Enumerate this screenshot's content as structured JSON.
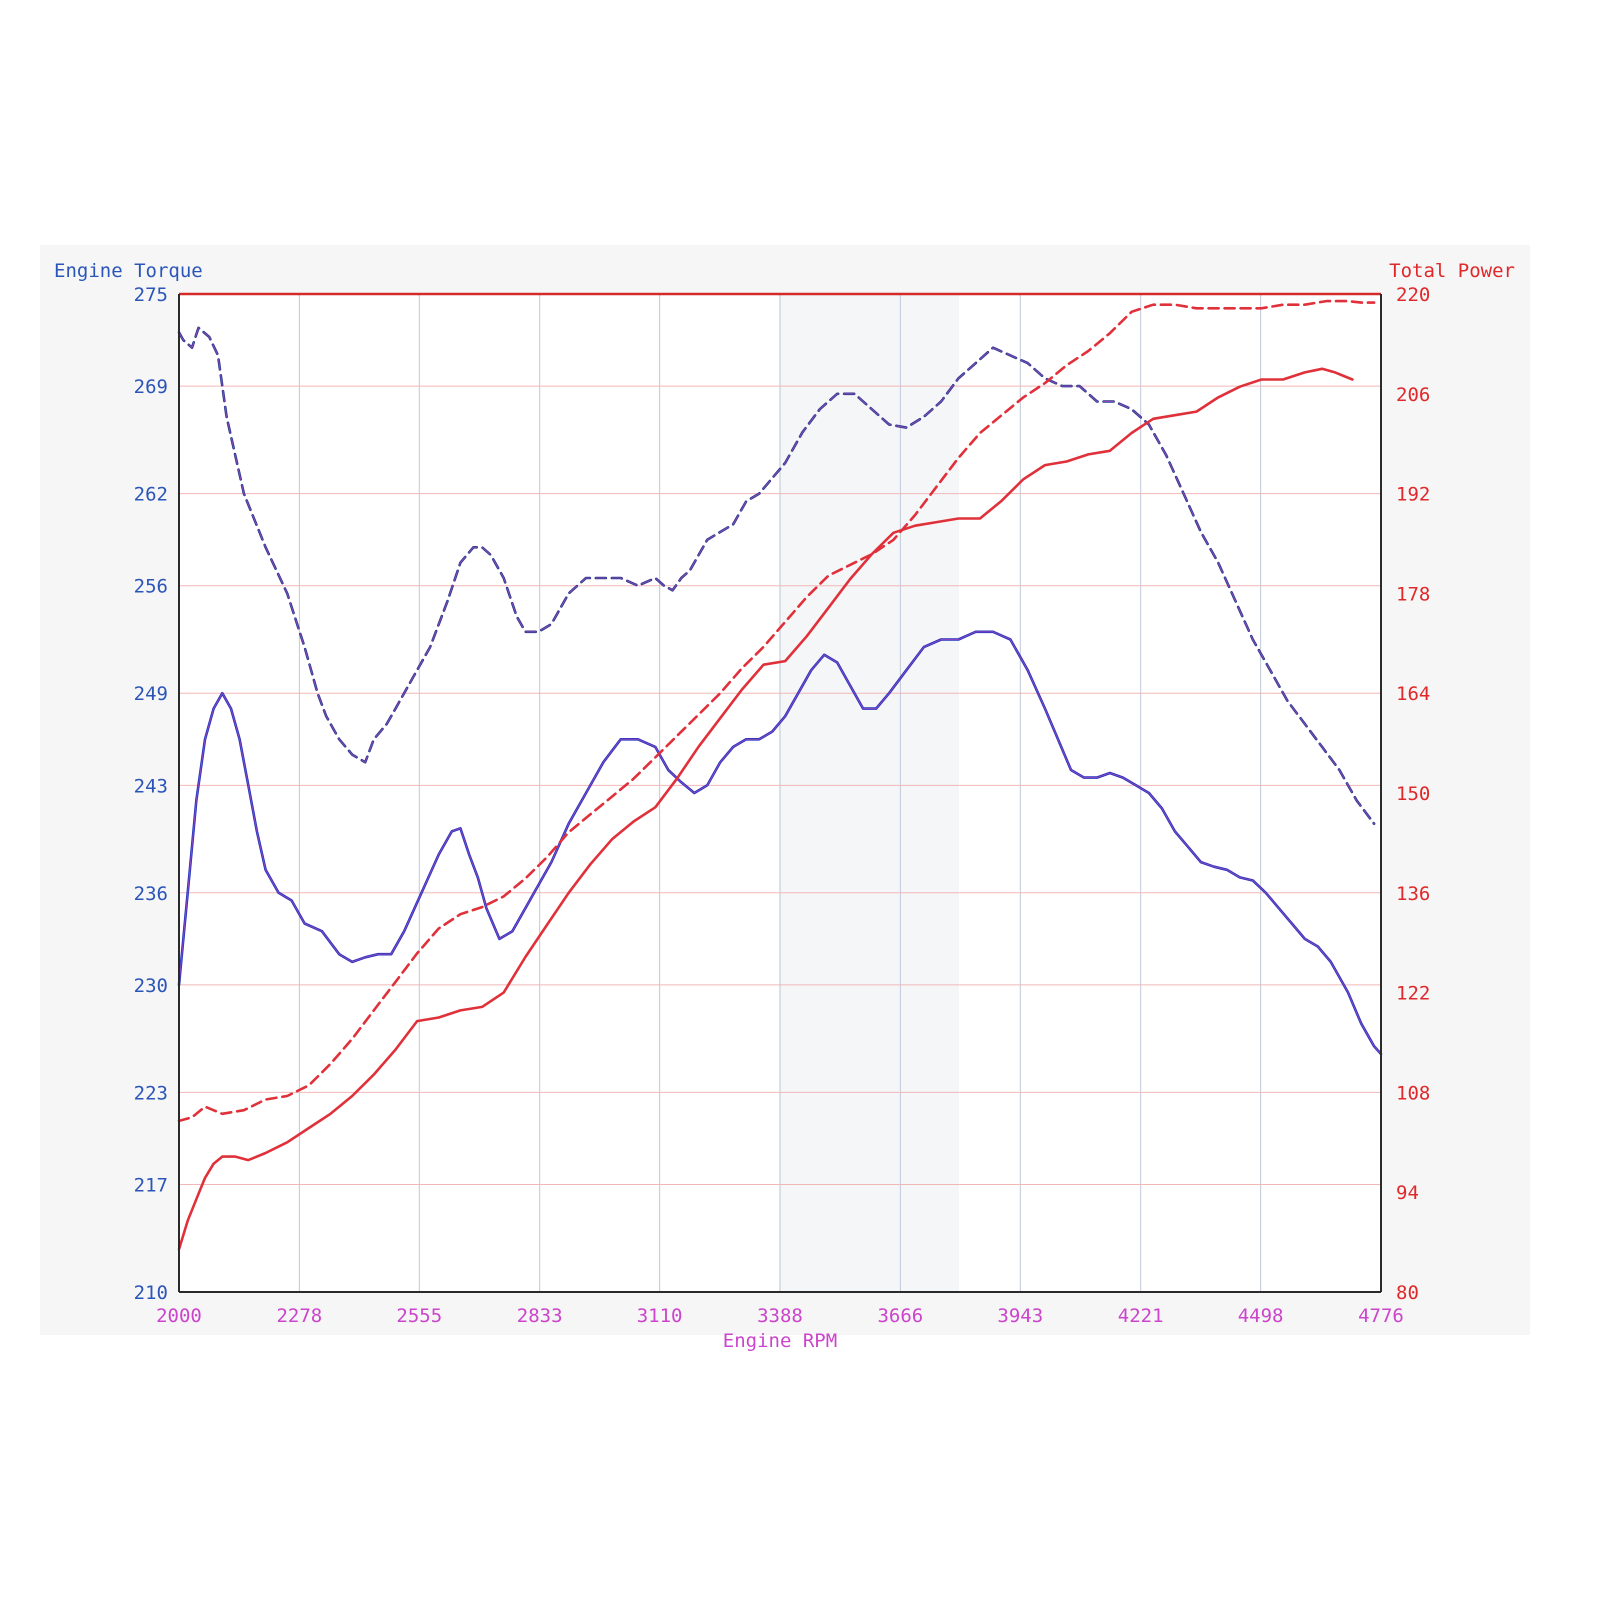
{
  "chart_data": {
    "type": "line",
    "left_axis_label": "Engine Torque",
    "right_axis_label": "Total Power",
    "xlabel": "Engine RPM",
    "x_ticks": [
      2000,
      2278,
      2555,
      2833,
      3110,
      3388,
      3666,
      3943,
      4221,
      4498,
      4776
    ],
    "left_ticks": [
      210,
      217,
      223,
      230,
      236,
      243,
      249,
      256,
      262,
      269,
      275
    ],
    "right_ticks": [
      80,
      94,
      108,
      122,
      136,
      150,
      164,
      178,
      192,
      206,
      220
    ],
    "xlim": [
      2000,
      4776
    ],
    "left_ylim": [
      210,
      275
    ],
    "right_ylim": [
      80,
      220
    ],
    "grid": true,
    "colors": {
      "left_axis": "#2b55b8",
      "right_axis": "#e0282a",
      "x_axis": "#cc44cc",
      "torque_solid": "#2233bb",
      "torque_dashed": "#283a8c",
      "power": "#e0303a",
      "grid_pink": "#f2b8b8",
      "grid_blue": "#c0c8d8"
    },
    "series": [
      {
        "axis": "left",
        "style": "dashed",
        "x": [
          2000,
          2010,
          2030,
          2045,
          2070,
          2090,
          2110,
          2150,
          2200,
          2250,
          2290,
          2320,
          2340,
          2370,
          2400,
          2430,
          2450,
          2480,
          2500,
          2540,
          2580,
          2620,
          2650,
          2680,
          2700,
          2720,
          2750,
          2780,
          2800,
          2830,
          2860,
          2900,
          2940,
          2980,
          3020,
          3060,
          3100,
          3120,
          3140,
          3160,
          3180,
          3220,
          3250,
          3280,
          3310,
          3340,
          3370,
          3400,
          3440,
          3480,
          3520,
          3560,
          3600,
          3640,
          3680,
          3720,
          3760,
          3800,
          3840,
          3880,
          3920,
          3960,
          4000,
          4040,
          4080,
          4120,
          4160,
          4200,
          4240,
          4280,
          4320,
          4360,
          4400,
          4440,
          4480,
          4520,
          4560,
          4600,
          4640,
          4680,
          4720,
          4760
        ],
        "values": [
          272.5,
          272.0,
          271.5,
          272.8,
          272.2,
          271.0,
          267.0,
          262.0,
          258.5,
          255.5,
          252.0,
          249.0,
          247.5,
          246.0,
          245.0,
          244.5,
          246.0,
          247.0,
          248.0,
          250.0,
          252.0,
          255.0,
          257.5,
          258.5,
          258.5,
          258.0,
          256.5,
          254.0,
          253.0,
          253.0,
          253.5,
          255.5,
          256.5,
          256.5,
          256.5,
          256.0,
          256.5,
          256.0,
          255.7,
          256.5,
          257.0,
          259.0,
          259.5,
          260.0,
          261.5,
          262.0,
          263.0,
          264.0,
          266.0,
          267.5,
          268.5,
          268.5,
          267.5,
          266.5,
          266.3,
          267.0,
          268.0,
          269.5,
          270.5,
          271.5,
          271.0,
          270.5,
          269.5,
          269.0,
          269.0,
          268.0,
          268.0,
          267.5,
          266.5,
          264.5,
          262.0,
          259.5,
          257.5,
          255.0,
          252.5,
          250.5,
          248.5,
          247.0,
          245.5,
          244.0,
          242.0,
          240.5
        ]
      },
      {
        "axis": "left",
        "style": "solid",
        "x": [
          2000,
          2020,
          2040,
          2060,
          2080,
          2100,
          2120,
          2140,
          2160,
          2180,
          2200,
          2230,
          2260,
          2290,
          2330,
          2370,
          2400,
          2430,
          2460,
          2490,
          2520,
          2560,
          2600,
          2630,
          2650,
          2670,
          2690,
          2710,
          2740,
          2770,
          2800,
          2830,
          2860,
          2900,
          2940,
          2980,
          3020,
          3060,
          3100,
          3130,
          3160,
          3190,
          3220,
          3250,
          3280,
          3310,
          3340,
          3370,
          3400,
          3430,
          3460,
          3490,
          3520,
          3550,
          3580,
          3610,
          3640,
          3680,
          3720,
          3760,
          3800,
          3840,
          3880,
          3920,
          3960,
          4000,
          4030,
          4060,
          4090,
          4120,
          4150,
          4180,
          4210,
          4240,
          4270,
          4300,
          4330,
          4360,
          4390,
          4420,
          4450,
          4480,
          4510,
          4540,
          4570,
          4600,
          4630,
          4660,
          4700,
          4730,
          4760,
          4776
        ],
        "values": [
          230.0,
          236.0,
          242.0,
          246.0,
          248.0,
          249.0,
          248.0,
          246.0,
          243.0,
          240.0,
          237.5,
          236.0,
          235.5,
          234.0,
          233.5,
          232.0,
          231.5,
          231.8,
          232.0,
          232.0,
          233.5,
          236.0,
          238.5,
          240.0,
          240.2,
          238.5,
          237.0,
          235.0,
          233.0,
          233.5,
          235.0,
          236.5,
          238.0,
          240.5,
          242.5,
          244.5,
          246.0,
          246.0,
          245.5,
          244.0,
          243.2,
          242.5,
          243.0,
          244.5,
          245.5,
          246.0,
          246.0,
          246.5,
          247.5,
          249.0,
          250.5,
          251.5,
          251.0,
          249.5,
          248.0,
          248.0,
          249.0,
          250.5,
          252.0,
          252.5,
          252.5,
          253.0,
          253.0,
          252.5,
          250.5,
          248.0,
          246.0,
          244.0,
          243.5,
          243.5,
          243.8,
          243.5,
          243.0,
          242.5,
          241.5,
          240.0,
          239.0,
          238.0,
          237.7,
          237.5,
          237.0,
          236.8,
          236.0,
          235.0,
          234.0,
          233.0,
          232.5,
          231.5,
          229.5,
          227.5,
          226.0,
          225.5
        ]
      },
      {
        "axis": "right",
        "style": "dashed",
        "x": [
          2000,
          2030,
          2060,
          2100,
          2150,
          2200,
          2250,
          2300,
          2350,
          2400,
          2450,
          2500,
          2550,
          2600,
          2650,
          2700,
          2750,
          2800,
          2850,
          2900,
          2950,
          3000,
          3050,
          3100,
          3150,
          3200,
          3250,
          3300,
          3350,
          3400,
          3450,
          3500,
          3550,
          3600,
          3650,
          3700,
          3750,
          3800,
          3850,
          3900,
          3950,
          4000,
          4050,
          4100,
          4150,
          4200,
          4250,
          4300,
          4350,
          4400,
          4450,
          4500,
          4550,
          4600,
          4650,
          4700,
          4730,
          4760
        ],
        "values": [
          104.0,
          104.5,
          106.0,
          105.0,
          105.5,
          107.0,
          107.5,
          109.0,
          112.0,
          115.5,
          119.5,
          123.5,
          127.5,
          131.0,
          133.0,
          134.0,
          135.5,
          138.0,
          141.0,
          144.5,
          147.0,
          149.5,
          152.0,
          155.0,
          158.0,
          161.0,
          164.0,
          167.5,
          170.5,
          174.0,
          177.5,
          180.5,
          182.0,
          183.5,
          185.5,
          189.0,
          193.0,
          197.0,
          200.5,
          203.0,
          205.5,
          207.5,
          210.0,
          212.0,
          214.5,
          217.5,
          218.5,
          218.5,
          218.0,
          218.0,
          218.0,
          218.0,
          218.5,
          218.5,
          219.0,
          219.0,
          218.8,
          218.8
        ]
      },
      {
        "axis": "right",
        "style": "solid",
        "x": [
          2000,
          2020,
          2040,
          2060,
          2080,
          2100,
          2130,
          2160,
          2200,
          2250,
          2300,
          2350,
          2400,
          2450,
          2500,
          2550,
          2600,
          2650,
          2700,
          2750,
          2800,
          2850,
          2900,
          2950,
          3000,
          3050,
          3100,
          3150,
          3200,
          3250,
          3300,
          3350,
          3400,
          3450,
          3500,
          3550,
          3600,
          3650,
          3700,
          3750,
          3800,
          3850,
          3900,
          3950,
          4000,
          4050,
          4100,
          4150,
          4200,
          4250,
          4300,
          4350,
          4400,
          4450,
          4500,
          4550,
          4600,
          4640,
          4670,
          4690,
          4710
        ],
        "values": [
          86.0,
          90.0,
          93.0,
          96.0,
          98.0,
          99.0,
          99.0,
          98.5,
          99.5,
          101.0,
          103.0,
          105.0,
          107.5,
          110.5,
          114.0,
          118.0,
          118.5,
          119.5,
          120.0,
          122.0,
          127.0,
          131.5,
          136.0,
          140.0,
          143.5,
          146.0,
          148.0,
          152.0,
          156.5,
          160.5,
          164.5,
          168.0,
          168.5,
          172.0,
          176.0,
          180.0,
          183.5,
          186.5,
          187.5,
          188.0,
          188.5,
          188.5,
          191.0,
          194.0,
          196.0,
          196.5,
          197.5,
          198.0,
          200.5,
          202.5,
          203.0,
          203.5,
          205.5,
          207.0,
          208.0,
          208.0,
          209.0,
          209.5,
          209.0,
          208.5,
          208.0
        ]
      }
    ]
  }
}
